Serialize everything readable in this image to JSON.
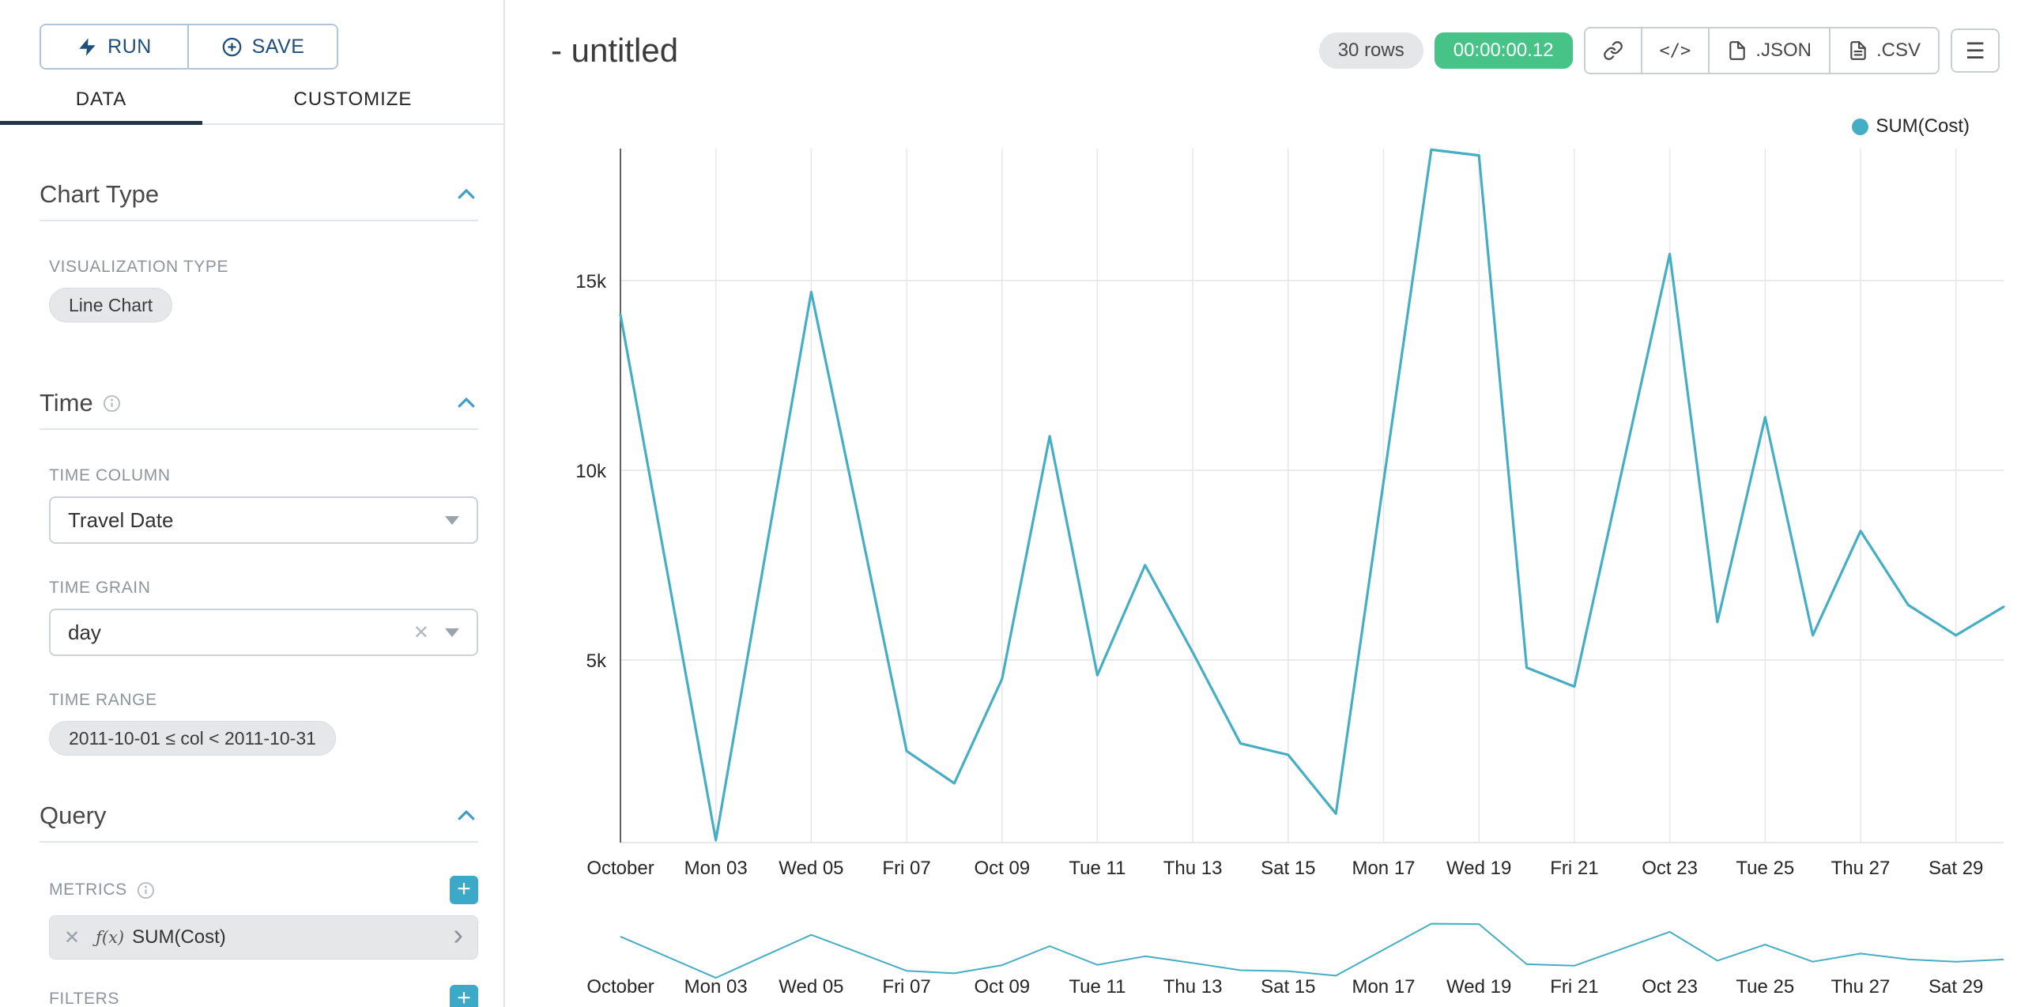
{
  "colors": {
    "series_line": "#45adc4",
    "timer_green": "#47c388",
    "accent_blue": "#3f9fc6",
    "plus_button_teal": "#3da9c9",
    "run_save_navy": "#1e4e79"
  },
  "icons": {
    "menu": "☰",
    "clear": "✕",
    "chevron_right": "›",
    "plus": "+"
  },
  "sidebar": {
    "run_button": {
      "label": "RUN"
    },
    "save_button": {
      "label": "SAVE"
    },
    "tabs": {
      "data": "DATA",
      "customize": "CUSTOMIZE"
    },
    "chart_type": {
      "title": "Chart Type",
      "viz_type_label": "VISUALIZATION TYPE",
      "viz_type_value": "Line Chart"
    },
    "time": {
      "title": "Time",
      "column_label": "TIME COLUMN",
      "column_value": "Travel Date",
      "grain_label": "TIME GRAIN",
      "grain_value": "day",
      "range_label": "TIME RANGE",
      "range_value": "2011-10-01 ≤ col < 2011-10-31"
    },
    "query": {
      "title": "Query",
      "metrics_label": "METRICS",
      "metric": {
        "fx": "ƒ(x)",
        "label": "SUM(Cost)"
      },
      "filters_label": "FILTERS"
    }
  },
  "header": {
    "title": "- untitled",
    "row_count_badge": "30 rows",
    "timer_badge": "00:00:00.12",
    "code_button": "</>",
    "json_button": ".JSON",
    "csv_button": ".CSV"
  },
  "chart_data": {
    "type": "line",
    "title": "- untitled",
    "legend_position": "top-right",
    "grid": true,
    "x_axis": {
      "column": "Travel Date",
      "grain": "day",
      "start_date": "2011-10-01",
      "tick_days": [
        1,
        3,
        5,
        7,
        9,
        11,
        13,
        15,
        17,
        19,
        21,
        23,
        25,
        27,
        29
      ],
      "tick_labels": [
        "October",
        "Mon 03",
        "Wed 05",
        "Fri 07",
        "Oct 09",
        "Tue 11",
        "Thu 13",
        "Sat 15",
        "Mon 17",
        "Wed 19",
        "Fri 21",
        "Oct 23",
        "Tue 25",
        "Thu 27",
        "Sat 29"
      ]
    },
    "y_axis": {
      "ticks": [
        5000,
        10000,
        15000
      ],
      "tick_labels": [
        "5k",
        "10k",
        "15k"
      ],
      "range": [
        0,
        18600
      ]
    },
    "series": [
      {
        "name": "SUM(Cost)",
        "color": "#45adc4",
        "x_day": [
          1,
          2,
          3,
          4,
          5,
          6,
          7,
          8,
          9,
          10,
          11,
          12,
          13,
          14,
          15,
          16,
          17,
          18,
          19,
          20,
          21,
          22,
          23,
          24,
          25,
          26,
          27,
          28,
          29,
          30
        ],
        "values": [
          14100,
          7200,
          250,
          7500,
          14700,
          8700,
          2600,
          1750,
          4500,
          10900,
          4600,
          7500,
          5200,
          2800,
          2500,
          950,
          9700,
          18450,
          18300,
          4800,
          4300,
          10000,
          15700,
          6000,
          11400,
          5650,
          8400,
          6450,
          5650,
          6400
        ]
      }
    ]
  }
}
